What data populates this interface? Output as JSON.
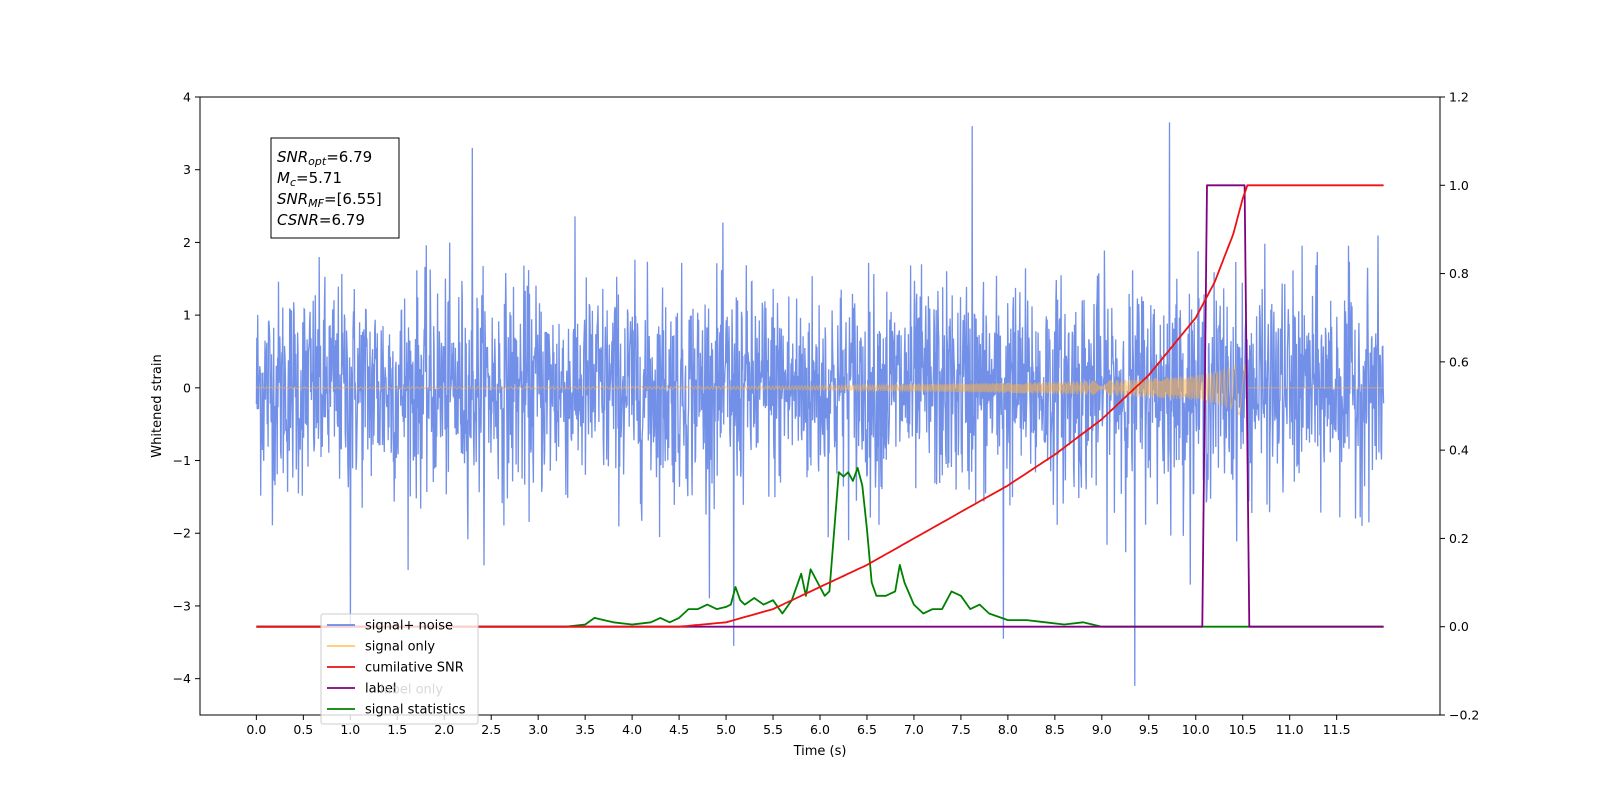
{
  "chart_data": {
    "type": "line",
    "xlabel": "Time (s)",
    "ylabel": "Whitened strain",
    "xlim": [
      -0.6,
      12.6
    ],
    "ylim": [
      -4.5,
      4.0
    ],
    "y2lim": [
      -0.2,
      1.2
    ],
    "x_ticks": [
      "0.0",
      "0.5",
      "1.0",
      "1.5",
      "2.0",
      "2.5",
      "3.0",
      "3.5",
      "4.0",
      "4.5",
      "5.0",
      "5.5",
      "6.0",
      "6.5",
      "7.0",
      "7.5",
      "8.0",
      "8.5",
      "9.0",
      "9.5",
      "10.0",
      "10.5",
      "11.0",
      "11.5"
    ],
    "y_ticks": [
      "−4",
      "−3",
      "−2",
      "−1",
      "0",
      "1",
      "2",
      "3",
      "4"
    ],
    "y2_ticks": [
      "−0.2",
      "0.0",
      "0.2",
      "0.4",
      "0.6",
      "0.8",
      "1.0",
      "1.2"
    ],
    "legend_position": "lower-left",
    "annotation": {
      "snr_opt": {
        "base": "SNR",
        "sub": "opt",
        "value": "=6.79"
      },
      "mc": {
        "base": "M",
        "sub": "c",
        "value": "=5.71"
      },
      "snr_mf": {
        "base": "SNR",
        "sub": "MF",
        "value": "=[6.55]"
      },
      "csnr": {
        "base": "CSNR",
        "sub": "",
        "value": "=6.79"
      }
    },
    "series": [
      {
        "name": "signal+ noise",
        "axis": "left",
        "color": "#6a8ae6",
        "description_values": {
          "x_range": [
            0.0,
            12.0
          ],
          "typical_envelope": [
            -2.2,
            2.2
          ],
          "max_peaks": [
            3.6,
            3.65
          ],
          "min_peaks": [
            -3.55,
            -4.1
          ]
        }
      },
      {
        "name": "signal only",
        "axis": "left",
        "color": "#ffb347",
        "envelope": {
          "x": [
            0,
            5.0,
            6.0,
            7.0,
            8.0,
            9.0,
            9.5,
            10.0,
            10.2,
            10.4,
            10.5,
            10.52
          ],
          "amp": [
            0.01,
            0.02,
            0.03,
            0.05,
            0.07,
            0.1,
            0.13,
            0.17,
            0.22,
            0.3,
            0.42,
            0.55
          ]
        }
      },
      {
        "name": "cumilative SNR",
        "axis": "right",
        "color": "#ee1111",
        "x": [
          0,
          4.5,
          5.0,
          5.5,
          6.0,
          6.5,
          7.0,
          7.5,
          8.0,
          8.5,
          9.0,
          9.5,
          10.0,
          10.2,
          10.4,
          10.5,
          10.55,
          12.0
        ],
        "y": [
          0.0,
          0.0,
          0.01,
          0.04,
          0.09,
          0.14,
          0.2,
          0.26,
          0.32,
          0.39,
          0.47,
          0.57,
          0.7,
          0.78,
          0.89,
          0.97,
          1.0,
          1.0
        ]
      },
      {
        "name": "label",
        "axis": "right",
        "color": "#800080",
        "x": [
          0,
          10.07,
          10.12,
          10.52,
          10.57,
          12.0
        ],
        "y": [
          0,
          0,
          1,
          1,
          0,
          0
        ]
      },
      {
        "name": "label only",
        "axis": "right",
        "color": "#cccccc",
        "hidden_in_legend_overlap": true
      },
      {
        "name": "signal statistics",
        "axis": "right",
        "color": "#008000",
        "x": [
          0,
          3.3,
          3.5,
          3.6,
          3.7,
          3.8,
          4.0,
          4.2,
          4.3,
          4.4,
          4.5,
          4.6,
          4.7,
          4.8,
          4.9,
          5.0,
          5.05,
          5.1,
          5.15,
          5.2,
          5.3,
          5.4,
          5.5,
          5.6,
          5.7,
          5.8,
          5.85,
          5.9,
          6.0,
          6.05,
          6.1,
          6.2,
          6.25,
          6.3,
          6.35,
          6.4,
          6.45,
          6.5,
          6.55,
          6.6,
          6.7,
          6.8,
          6.85,
          6.9,
          7.0,
          7.1,
          7.2,
          7.3,
          7.4,
          7.5,
          7.6,
          7.7,
          7.8,
          8.0,
          8.2,
          8.4,
          8.6,
          8.8,
          9.0,
          9.2,
          10.0,
          12.0
        ],
        "y": [
          0,
          0.0,
          0.005,
          0.02,
          0.015,
          0.01,
          0.005,
          0.01,
          0.02,
          0.01,
          0.02,
          0.04,
          0.04,
          0.05,
          0.04,
          0.045,
          0.05,
          0.09,
          0.06,
          0.05,
          0.065,
          0.05,
          0.06,
          0.03,
          0.06,
          0.12,
          0.07,
          0.13,
          0.09,
          0.07,
          0.08,
          0.35,
          0.34,
          0.35,
          0.33,
          0.36,
          0.32,
          0.22,
          0.1,
          0.07,
          0.07,
          0.08,
          0.14,
          0.1,
          0.05,
          0.03,
          0.04,
          0.04,
          0.08,
          0.07,
          0.04,
          0.05,
          0.03,
          0.015,
          0.015,
          0.01,
          0.005,
          0.01,
          0.0,
          0.0,
          0.0,
          0.0
        ]
      }
    ]
  }
}
